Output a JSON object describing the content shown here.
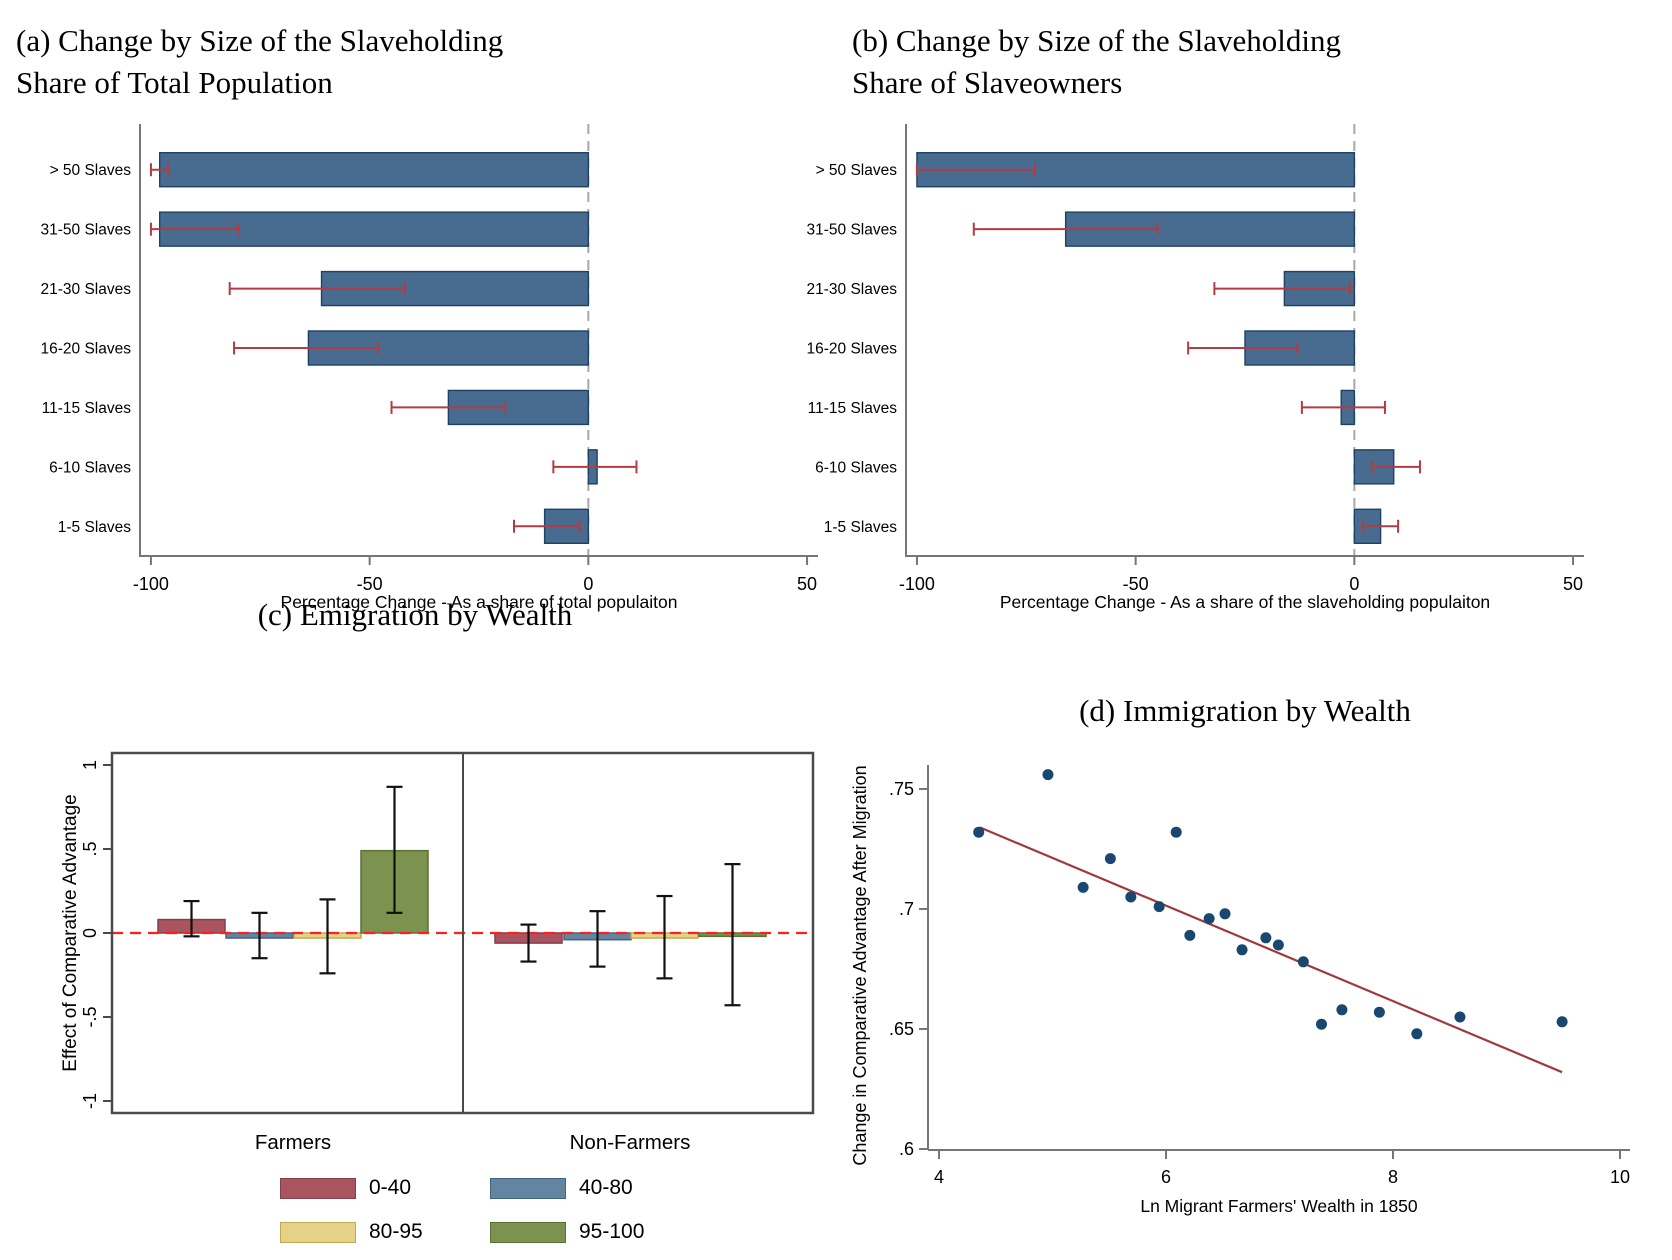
{
  "figure": {
    "panels": [
      {
        "id": "a",
        "title_lines": [
          "(a) Change by Size of the Slaveholding",
          "Share of Total Population"
        ]
      },
      {
        "id": "b",
        "title_lines": [
          "(b) Change by Size of the Slaveholding",
          "Share of Slaveowners"
        ]
      },
      {
        "id": "c",
        "title": "(c) Emigration by Wealth"
      },
      {
        "id": "d",
        "title": "(d) Immigration by Wealth"
      }
    ]
  },
  "colors": {
    "bar_blue": {
      "fill": "#476c8f",
      "stroke": "#1e4164"
    },
    "error_red": "#b23c41",
    "dashed_zero_gray": "#a8a8a8",
    "zero_dashed_red": "#ff1f1f",
    "red": {
      "fill": "#a9545e",
      "stroke": "#833f4c"
    },
    "blue": {
      "fill": "#6285a1",
      "stroke": "#446581"
    },
    "yellow": {
      "fill": "#e5d287",
      "stroke": "#c0a957"
    },
    "green": {
      "fill": "#7c9350",
      "stroke": "#5a7036"
    },
    "dot_navy": "#1a476f",
    "fit_red": "#9e3a3c",
    "spine_gray": "#767676",
    "box_gray": "#4a4a4a",
    "error_black": "#111111"
  },
  "chart_data": [
    {
      "id": "a",
      "type": "bar",
      "orientation": "horizontal",
      "title": "(a) Change by Size of the Slaveholding Share of Total Population",
      "categories": [
        "> 50 Slaves",
        "31-50 Slaves",
        "21-30 Slaves",
        "16-20 Slaves",
        "11-15 Slaves",
        "6-10 Slaves",
        "1-5 Slaves"
      ],
      "values": [
        -98,
        -98,
        -61,
        -64,
        -32,
        2,
        -10
      ],
      "ci_low": [
        -100,
        -100,
        -82,
        -81,
        -45,
        -8,
        -17
      ],
      "ci_high": [
        -96,
        -80,
        -42,
        -48,
        -19,
        11,
        -2
      ],
      "xlabel": "Percentage Change - As a share of total populaiton",
      "xticks": [
        -100,
        -50,
        0,
        50
      ],
      "xtick_labels": [
        "-100",
        "-50",
        "0",
        "50"
      ],
      "xlim": [
        -102.5,
        52.5
      ],
      "zero_line": "dashed-gray"
    },
    {
      "id": "b",
      "type": "bar",
      "orientation": "horizontal",
      "title": "(b) Change by Size of the Slaveholding Share of Slaveowners",
      "categories": [
        "> 50 Slaves",
        "31-50 Slaves",
        "21-30 Slaves",
        "16-20 Slaves",
        "11-15 Slaves",
        "6-10 Slaves",
        "1-5 Slaves"
      ],
      "values": [
        -100,
        -66,
        -16,
        -25,
        -3,
        9,
        6
      ],
      "ci_low": [
        -100,
        -87,
        -32,
        -38,
        -12,
        4,
        2
      ],
      "ci_high": [
        -73,
        -45,
        -1,
        -13,
        7,
        15,
        10
      ],
      "xlabel": "Percentage Change - As a share of the slaveholding populaiton",
      "xticks": [
        -100,
        -50,
        0,
        50
      ],
      "xtick_labels": [
        "-100",
        "-50",
        "0",
        "50"
      ],
      "xlim": [
        -102.5,
        52.5
      ],
      "zero_line": "dashed-gray"
    },
    {
      "id": "c",
      "type": "bar",
      "subtype": "grouped-with-ci",
      "title": "(c) Emigration by Wealth",
      "groups": [
        "Farmers",
        "Non-Farmers"
      ],
      "series": [
        {
          "name": "0-40",
          "color_key": "red",
          "values": [
            0.08,
            -0.06
          ],
          "ci_low": [
            -0.02,
            -0.17
          ],
          "ci_high": [
            0.19,
            0.05
          ]
        },
        {
          "name": "40-80",
          "color_key": "blue",
          "values": [
            -0.03,
            -0.04
          ],
          "ci_low": [
            -0.15,
            -0.2
          ],
          "ci_high": [
            0.12,
            0.13
          ]
        },
        {
          "name": "80-95",
          "color_key": "yellow",
          "values": [
            -0.03,
            -0.03
          ],
          "ci_low": [
            -0.24,
            -0.27
          ],
          "ci_high": [
            0.2,
            0.22
          ]
        },
        {
          "name": "95-100",
          "color_key": "green",
          "values": [
            0.49,
            -0.02
          ],
          "ci_low": [
            0.12,
            -0.43
          ],
          "ci_high": [
            0.87,
            0.41
          ]
        }
      ],
      "ylabel": "Effect of Comparative Advantage",
      "yticks": [
        -1,
        -0.5,
        0,
        0.5,
        1
      ],
      "ytick_labels": [
        "-1",
        "-.5",
        "0",
        ".5",
        "1"
      ],
      "ylim": [
        -1.07,
        1.07
      ],
      "zero_line": "dashed-red",
      "legend_position": "below"
    },
    {
      "id": "d",
      "type": "scatter",
      "title": "(d) Immigration by Wealth",
      "points": [
        [
          4.35,
          0.732
        ],
        [
          4.96,
          0.756
        ],
        [
          5.27,
          0.709
        ],
        [
          5.51,
          0.721
        ],
        [
          5.69,
          0.705
        ],
        [
          5.94,
          0.701
        ],
        [
          6.09,
          0.732
        ],
        [
          6.21,
          0.689
        ],
        [
          6.38,
          0.696
        ],
        [
          6.52,
          0.698
        ],
        [
          6.67,
          0.683
        ],
        [
          6.88,
          0.688
        ],
        [
          6.99,
          0.685
        ],
        [
          7.21,
          0.678
        ],
        [
          7.37,
          0.652
        ],
        [
          7.55,
          0.658
        ],
        [
          7.88,
          0.657
        ],
        [
          8.21,
          0.648
        ],
        [
          8.59,
          0.655
        ],
        [
          9.49,
          0.653
        ]
      ],
      "fit_line": {
        "x1": 4.36,
        "y1": 0.734,
        "x2": 9.49,
        "y2": 0.632
      },
      "xlabel": "Ln Migrant Farmers' Wealth in 1850",
      "ylabel": "Change in Comparative Advantage After Migration",
      "xticks": [
        4,
        6,
        8,
        10
      ],
      "xtick_labels": [
        "4",
        "6",
        "8",
        "10"
      ],
      "yticks": [
        0.6,
        0.65,
        0.7,
        0.75
      ],
      "ytick_labels": [
        ".6",
        ".65",
        ".7",
        ".75"
      ],
      "xlim": [
        3.9,
        10.15
      ],
      "ylim": [
        0.596,
        0.762
      ]
    }
  ]
}
